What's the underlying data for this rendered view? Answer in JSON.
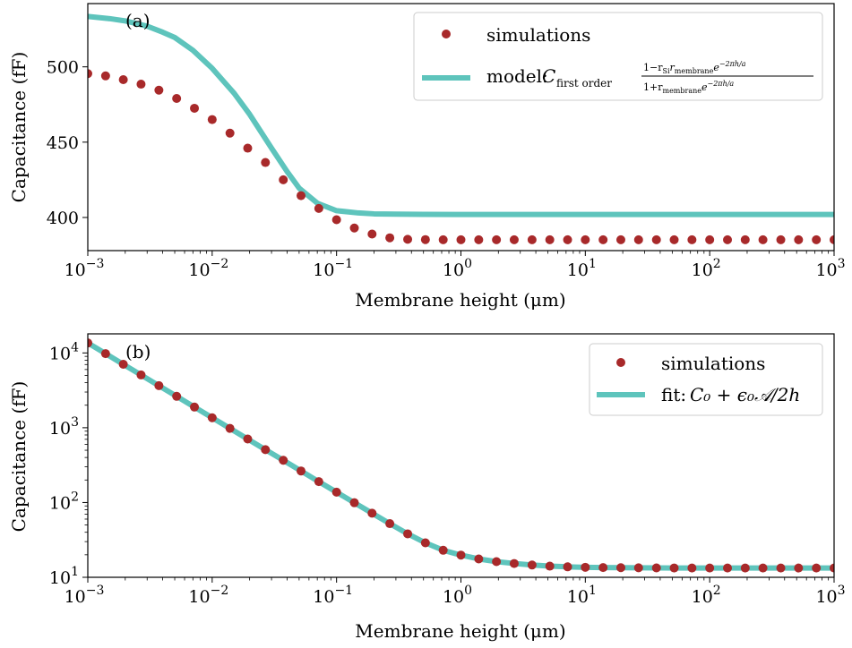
{
  "colors": {
    "marker": "#a8292a",
    "line": "#5ec4bc"
  },
  "chart_data": [
    {
      "type": "scatter",
      "panel_label": "(a)",
      "xscale": "log",
      "yscale": "linear",
      "xlim": [
        0.001,
        1000
      ],
      "ylim": [
        378,
        542
      ],
      "xlabel": "Membrane height (μm)",
      "ylabel": "Capacitance (fF)",
      "x_ticks": [
        {
          "value": 0.001,
          "base": "10",
          "exp": "−3"
        },
        {
          "value": 0.01,
          "base": "10",
          "exp": "−2"
        },
        {
          "value": 0.1,
          "base": "10",
          "exp": "−1"
        },
        {
          "value": 1,
          "base": "10",
          "exp": "0"
        },
        {
          "value": 10,
          "base": "10",
          "exp": "1"
        },
        {
          "value": 100,
          "base": "10",
          "exp": "2"
        },
        {
          "value": 1000,
          "base": "10",
          "exp": "3"
        }
      ],
      "y_ticks": [
        {
          "value": 400,
          "label": "400"
        },
        {
          "value": 450,
          "label": "450"
        },
        {
          "value": 500,
          "label": "500"
        }
      ],
      "legend": {
        "position": "upper-right",
        "entries": [
          {
            "kind": "marker",
            "label": "simulations"
          },
          {
            "kind": "line",
            "label": "model:",
            "math": {
              "main": "C",
              "sub": "first order",
              "num": "1−r",
              "num_sub1": "Si",
              "num_mid": "r",
              "num_sub2": "membrane",
              "num_exp": "e",
              "num_exp_sup": "−2πh/a",
              "den": "1+r",
              "den_sub": "membrane",
              "den_exp": "e",
              "den_exp_sup": "−2πh/a"
            }
          }
        ]
      },
      "series": [
        {
          "name": "simulations",
          "kind": "markers",
          "x": [
            0.001,
            0.00139,
            0.00193,
            0.00268,
            0.00373,
            0.00518,
            0.0072,
            0.01,
            0.0139,
            0.0193,
            0.0268,
            0.0373,
            0.0518,
            0.072,
            0.1,
            0.139,
            0.193,
            0.268,
            0.373,
            0.518,
            0.72,
            1,
            1.39,
            1.93,
            2.68,
            3.73,
            5.18,
            7.2,
            10,
            13.9,
            19.3,
            26.8,
            37.3,
            51.8,
            72,
            100,
            139,
            193,
            268,
            373,
            518,
            720,
            1000
          ],
          "y": [
            495.5,
            494,
            491.5,
            488.5,
            484.5,
            479,
            472.5,
            465,
            456,
            446,
            436.5,
            425,
            414.5,
            406,
            398.5,
            393,
            389,
            386.5,
            385.5,
            385.3,
            385.2,
            385.2,
            385.2,
            385.2,
            385.2,
            385.2,
            385.2,
            385.2,
            385.2,
            385.2,
            385.2,
            385.2,
            385.2,
            385.2,
            385.2,
            385.2,
            385.2,
            385.2,
            385.2,
            385.2,
            385.2,
            385.2,
            385.2
          ]
        },
        {
          "name": "model",
          "kind": "line",
          "x": [
            0.001,
            0.0015,
            0.002,
            0.003,
            0.004,
            0.005,
            0.007,
            0.01,
            0.015,
            0.02,
            0.03,
            0.04,
            0.05,
            0.07,
            0.1,
            0.15,
            0.2,
            0.3,
            0.5,
            1,
            10,
            100,
            1000
          ],
          "y": [
            533.5,
            532,
            530.5,
            527,
            523,
            519.5,
            511,
            499,
            482.5,
            468.5,
            446,
            430.5,
            419.5,
            409.5,
            404.5,
            403,
            402.4,
            402.2,
            402.1,
            402,
            402,
            402,
            402
          ]
        }
      ]
    },
    {
      "type": "scatter",
      "panel_label": "(b)",
      "xscale": "log",
      "yscale": "log",
      "xlim": [
        0.001,
        1000
      ],
      "ylim": [
        10,
        18000
      ],
      "xlabel": "Membrane height (μm)",
      "ylabel": "Capacitance (fF)",
      "x_ticks": [
        {
          "value": 0.001,
          "base": "10",
          "exp": "−3"
        },
        {
          "value": 0.01,
          "base": "10",
          "exp": "−2"
        },
        {
          "value": 0.1,
          "base": "10",
          "exp": "−1"
        },
        {
          "value": 1,
          "base": "10",
          "exp": "0"
        },
        {
          "value": 10,
          "base": "10",
          "exp": "1"
        },
        {
          "value": 100,
          "base": "10",
          "exp": "2"
        },
        {
          "value": 1000,
          "base": "10",
          "exp": "3"
        }
      ],
      "y_ticks": [
        {
          "value": 10,
          "base": "10",
          "exp": "1"
        },
        {
          "value": 100,
          "base": "10",
          "exp": "2"
        },
        {
          "value": 1000,
          "base": "10",
          "exp": "3"
        },
        {
          "value": 10000,
          "base": "10",
          "exp": "4"
        }
      ],
      "legend": {
        "position": "upper-right",
        "entries": [
          {
            "kind": "marker",
            "label": "simulations"
          },
          {
            "kind": "line",
            "label": "fit:",
            "math": {
              "text": "C₀ + ϵ₀𝒜/2h"
            }
          }
        ]
      },
      "series": [
        {
          "name": "simulations",
          "kind": "markers",
          "x": [
            0.001,
            0.00139,
            0.00193,
            0.00268,
            0.00373,
            0.00518,
            0.0072,
            0.01,
            0.0139,
            0.0193,
            0.0268,
            0.0373,
            0.0518,
            0.072,
            0.1,
            0.139,
            0.193,
            0.268,
            0.373,
            0.518,
            0.72,
            1,
            1.39,
            1.93,
            2.68,
            3.73,
            5.18,
            7.2,
            10,
            13.9,
            19.3,
            26.8,
            37.3,
            51.8,
            72,
            100,
            139,
            193,
            268,
            373,
            518,
            720,
            1000
          ],
          "y": [
            13600,
            9790,
            7050,
            5080,
            3650,
            2630,
            1890,
            1360,
            980,
            706,
            509,
            367,
            264,
            190,
            137.5,
            99.4,
            72,
            52.2,
            38.1,
            28.9,
            23,
            19.8,
            17.6,
            16.2,
            15.3,
            14.6,
            14.1,
            13.8,
            13.6,
            13.5,
            13.45,
            13.4,
            13.35,
            13.33,
            13.31,
            13.3,
            13.3,
            13.3,
            13.3,
            13.3,
            13.3,
            13.3,
            13.3
          ]
        },
        {
          "name": "fit",
          "kind": "line",
          "x": [
            0.001,
            0.00139,
            0.00193,
            0.00268,
            0.00373,
            0.00518,
            0.0072,
            0.01,
            0.0139,
            0.0193,
            0.0268,
            0.0373,
            0.0518,
            0.072,
            0.1,
            0.139,
            0.193,
            0.268,
            0.373,
            0.518,
            0.72,
            1,
            1.39,
            1.93,
            2.68,
            3.73,
            5.18,
            7.2,
            10,
            13.9,
            19.3,
            26.8,
            37.3,
            51.8,
            72,
            100,
            139,
            193,
            268,
            373,
            518,
            720,
            1000
          ],
          "y": [
            13600,
            9790,
            7050,
            5080,
            3650,
            2630,
            1890,
            1360,
            980,
            706,
            509,
            367,
            264,
            190,
            137.5,
            99.4,
            72,
            52.2,
            38.1,
            28.9,
            23,
            19.8,
            17.6,
            16.2,
            15.3,
            14.6,
            14.1,
            13.8,
            13.6,
            13.5,
            13.45,
            13.4,
            13.35,
            13.33,
            13.31,
            13.3,
            13.3,
            13.3,
            13.3,
            13.3,
            13.3,
            13.3,
            13.3
          ]
        }
      ]
    }
  ]
}
